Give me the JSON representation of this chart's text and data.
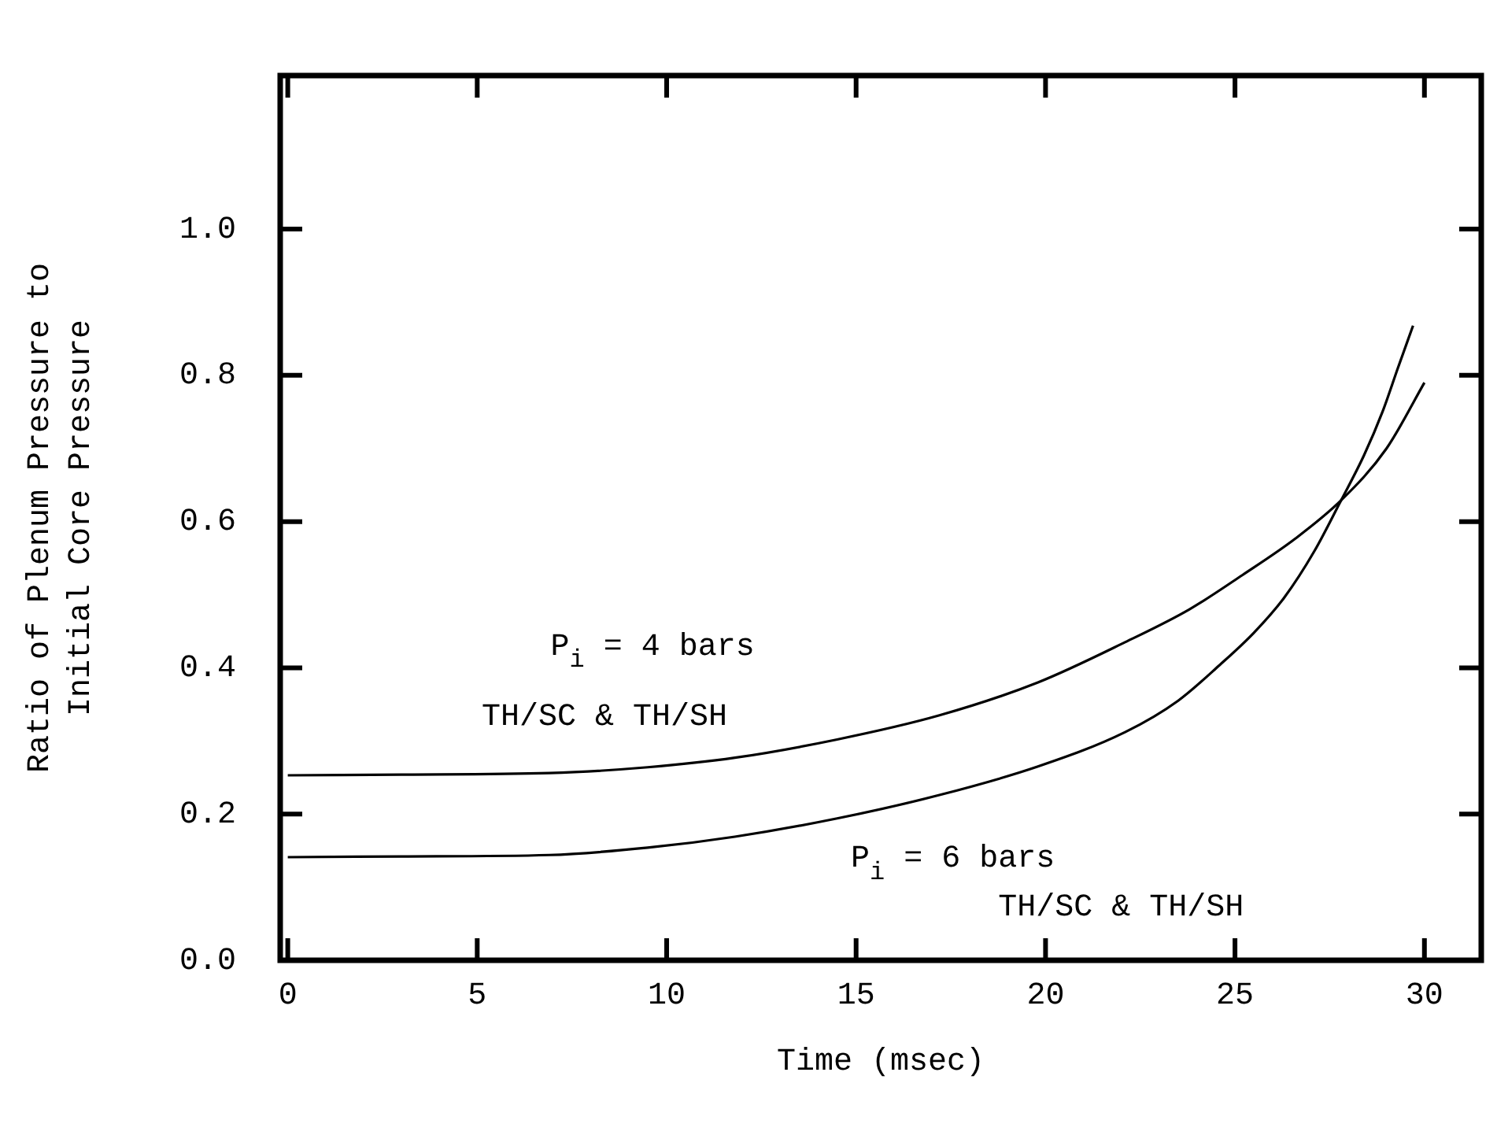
{
  "chart_data": {
    "type": "line",
    "xlabel": "Time (msec)",
    "ylabel": "Ratio of Plenum Pressure to\nInitial Core Pressure",
    "xlim": [
      -0.2,
      31.5
    ],
    "ylim": [
      0,
      1.21
    ],
    "xticks": [
      0,
      5,
      10,
      15,
      20,
      25,
      30
    ],
    "yticks": [
      {
        "value": 0,
        "label": "0.0"
      },
      {
        "value": 0.2,
        "label": "0.2"
      },
      {
        "value": 0.4,
        "label": "0.4"
      },
      {
        "value": 0.6,
        "label": "0.6"
      },
      {
        "value": 0.8,
        "label": "0.8"
      },
      {
        "value": 1,
        "label": "1.0"
      }
    ],
    "grid": false,
    "legend": false,
    "marker": "none",
    "line_style": "solid",
    "series": [
      {
        "color": "#000000",
        "x": [
          0,
          3,
          6.9,
          9.5,
          11.8,
          14.5,
          17.2,
          19.8,
          22.1,
          23.8,
          25.2,
          26.6,
          27.8,
          29,
          30
        ],
        "values": [
          0.253,
          0.254,
          0.256,
          0.264,
          0.277,
          0.302,
          0.335,
          0.38,
          0.435,
          0.48,
          0.527,
          0.577,
          0.629,
          0.7,
          0.79
        ]
      },
      {
        "color": "#000000",
        "x": [
          0,
          3,
          6.9,
          9.5,
          11.8,
          14.5,
          17.2,
          19.8,
          22.1,
          23.5,
          24.6,
          25.5,
          26.3,
          27.1,
          27.8,
          28.4,
          28.9,
          29.3,
          29.7
        ],
        "values": [
          0.141,
          0.142,
          0.144,
          0.154,
          0.169,
          0.194,
          0.226,
          0.265,
          0.312,
          0.355,
          0.404,
          0.448,
          0.496,
          0.56,
          0.629,
          0.69,
          0.751,
          0.81,
          0.868
        ]
      }
    ],
    "annotations": [
      "P$_{i}$ = 4 bars",
      "TH/SC & TH/SH",
      "P$_{i}$ = 6 bars",
      "TH/SC & TH/SH"
    ]
  }
}
